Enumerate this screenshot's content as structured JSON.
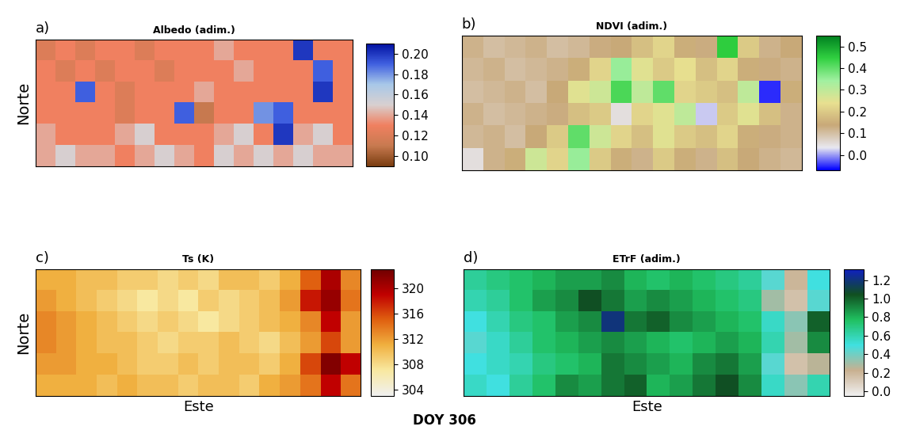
{
  "chart_data": [
    {
      "type": "heatmap",
      "title": "Albedo (adim.)",
      "annotations": [
        "a)"
      ],
      "ylabel": "Norte",
      "tick_labels": false,
      "cells": [
        [
          0.12,
          0.13,
          0.12,
          0.13,
          0.13,
          0.12,
          0.13,
          0.13,
          0.13,
          0.14,
          0.13,
          0.13,
          0.13,
          0.2,
          0.13,
          0.13
        ],
        [
          0.13,
          0.12,
          0.13,
          0.12,
          0.13,
          0.13,
          0.12,
          0.13,
          0.13,
          0.13,
          0.14,
          0.13,
          0.13,
          0.13,
          0.19,
          0.13
        ],
        [
          0.13,
          0.13,
          0.19,
          0.13,
          0.12,
          0.13,
          0.13,
          0.13,
          0.14,
          0.13,
          0.13,
          0.13,
          0.13,
          0.13,
          0.2,
          0.13
        ],
        [
          0.13,
          0.13,
          0.13,
          0.13,
          0.12,
          0.13,
          0.13,
          0.19,
          0.11,
          0.13,
          0.13,
          0.18,
          0.19,
          0.13,
          0.13,
          0.13
        ],
        [
          0.14,
          0.13,
          0.13,
          0.13,
          0.14,
          0.15,
          0.13,
          0.13,
          0.13,
          0.14,
          0.15,
          0.13,
          0.2,
          0.14,
          0.15,
          0.13
        ],
        [
          0.14,
          0.15,
          0.14,
          0.14,
          0.13,
          0.14,
          0.15,
          0.14,
          0.13,
          0.15,
          0.14,
          0.15,
          0.14,
          0.15,
          0.14,
          0.14
        ]
      ],
      "colorbar": {
        "range": [
          0.09,
          0.21
        ],
        "ticks": [
          {
            "value": 0.1,
            "label": "0.10"
          },
          {
            "value": 0.12,
            "label": "0.12"
          },
          {
            "value": 0.14,
            "label": "0.14"
          },
          {
            "value": 0.16,
            "label": "0.16"
          },
          {
            "value": 0.18,
            "label": "0.18"
          },
          {
            "value": 0.2,
            "label": "0.20"
          }
        ],
        "colors": [
          "#7a3d10",
          "#c87a50",
          "#f08060",
          "#d8d0d0",
          "#a8c8e8",
          "#4060e0",
          "#0010a0"
        ]
      }
    },
    {
      "type": "heatmap",
      "title": "NDVI (adim.)",
      "annotations": [
        "b)"
      ],
      "tick_labels": false,
      "cells": [
        [
          0.12,
          0.1,
          0.11,
          0.12,
          0.1,
          0.11,
          0.13,
          0.14,
          0.18,
          0.22,
          0.15,
          0.13,
          0.45,
          0.2,
          0.12,
          0.14
        ],
        [
          0.11,
          0.12,
          0.1,
          0.11,
          0.12,
          0.15,
          0.22,
          0.35,
          0.25,
          0.2,
          0.24,
          0.18,
          0.22,
          0.15,
          0.13,
          0.12
        ],
        [
          0.1,
          0.11,
          0.12,
          0.1,
          0.14,
          0.25,
          0.28,
          0.42,
          0.3,
          0.4,
          0.22,
          0.2,
          0.18,
          0.3,
          -0.05,
          0.15
        ],
        [
          0.12,
          0.1,
          0.11,
          0.12,
          0.13,
          0.18,
          0.2,
          0.05,
          0.22,
          0.25,
          0.3,
          0.02,
          0.2,
          0.25,
          0.18,
          0.12
        ],
        [
          0.11,
          0.12,
          0.1,
          0.14,
          0.2,
          0.4,
          0.28,
          0.22,
          0.18,
          0.25,
          0.2,
          0.18,
          0.22,
          0.15,
          0.13,
          0.12
        ],
        [
          0.05,
          0.12,
          0.15,
          0.28,
          0.22,
          0.35,
          0.2,
          0.15,
          0.12,
          0.2,
          0.15,
          0.12,
          0.18,
          0.14,
          0.12,
          0.11
        ]
      ],
      "colorbar": {
        "range": [
          -0.07,
          0.55
        ],
        "ticks": [
          0.0,
          0.1,
          0.2,
          0.3,
          0.4,
          0.5
        ],
        "colors": [
          "#0000ff",
          "#e8e8f0",
          "#c8a878",
          "#e8e090",
          "#a0f0a0",
          "#30d040",
          "#008020"
        ]
      }
    },
    {
      "type": "heatmap",
      "title": "Ts (K)",
      "annotations": [
        "c)"
      ],
      "ylabel": "Norte",
      "xlabel": "Este",
      "tick_labels": false,
      "cells": [
        [
          311,
          311,
          310,
          310,
          309,
          309,
          308,
          309,
          308,
          310,
          310,
          309,
          311,
          315,
          320,
          313
        ],
        [
          312,
          311,
          310,
          309,
          308,
          307,
          308,
          307,
          309,
          308,
          309,
          310,
          312,
          318,
          321,
          314
        ],
        [
          313,
          312,
          311,
          310,
          309,
          308,
          309,
          308,
          307,
          308,
          309,
          310,
          311,
          313,
          319,
          312
        ],
        [
          313,
          312,
          311,
          310,
          310,
          309,
          308,
          309,
          309,
          310,
          309,
          308,
          310,
          312,
          316,
          312
        ],
        [
          312,
          312,
          311,
          311,
          310,
          309,
          309,
          310,
          309,
          310,
          310,
          309,
          311,
          316,
          322,
          319
        ],
        [
          311,
          311,
          311,
          310,
          311,
          310,
          310,
          309,
          310,
          310,
          309,
          311,
          312,
          314,
          319,
          314
        ]
      ],
      "colorbar": {
        "range": [
          303,
          323
        ],
        "ticks": [
          304,
          308,
          312,
          316,
          320
        ],
        "colors": [
          "#f0f0f0",
          "#f8e8a0",
          "#f0b040",
          "#e06010",
          "#c00000",
          "#700000"
        ]
      }
    },
    {
      "type": "heatmap",
      "title": "ETrF (adim.)",
      "annotations": [
        "d)"
      ],
      "xlabel": "Este",
      "tick_labels": false,
      "cells": [
        [
          0.65,
          0.7,
          0.75,
          0.8,
          0.85,
          0.85,
          0.9,
          0.8,
          0.75,
          0.8,
          0.75,
          0.7,
          0.65,
          0.45,
          0.2,
          0.5
        ],
        [
          0.6,
          0.65,
          0.75,
          0.85,
          0.9,
          1.05,
          0.95,
          0.85,
          0.9,
          0.85,
          0.8,
          0.75,
          0.7,
          0.3,
          0.15,
          0.45
        ],
        [
          0.5,
          0.6,
          0.7,
          0.75,
          0.85,
          0.9,
          1.2,
          0.95,
          1.0,
          0.9,
          0.85,
          0.8,
          0.75,
          0.55,
          0.35,
          1.0
        ],
        [
          0.45,
          0.55,
          0.65,
          0.75,
          0.8,
          0.85,
          0.9,
          0.85,
          0.8,
          0.75,
          0.8,
          0.85,
          0.8,
          0.6,
          0.3,
          0.9
        ],
        [
          0.5,
          0.55,
          0.6,
          0.7,
          0.75,
          0.8,
          0.95,
          0.9,
          0.85,
          0.8,
          0.9,
          0.95,
          0.85,
          0.45,
          0.15,
          0.25
        ],
        [
          0.55,
          0.5,
          0.65,
          0.75,
          0.9,
          0.85,
          0.95,
          1.0,
          0.8,
          0.85,
          0.95,
          1.05,
          0.9,
          0.55,
          0.35,
          0.6
        ]
      ],
      "colorbar": {
        "range": [
          -0.05,
          1.32
        ],
        "ticks": [
          0.0,
          0.2,
          0.4,
          0.6,
          0.8,
          1.0,
          1.2
        ],
        "colors": [
          "#f0f0f0",
          "#c8b090",
          "#40e0e0",
          "#20c060",
          "#105020",
          "#1020c0"
        ]
      }
    }
  ],
  "footer": "DOY 306"
}
